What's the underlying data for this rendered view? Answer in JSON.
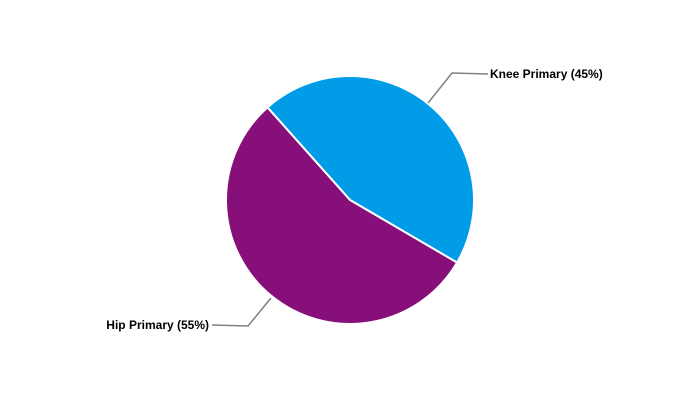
{
  "chart_data": {
    "type": "pie",
    "title": "",
    "slices": [
      {
        "label": "Knee Primary (45%)",
        "category": "Knee Primary",
        "value": 45,
        "color": "#009ce8"
      },
      {
        "label": "Hip Primary (55%)",
        "category": "Hip Primary",
        "value": 55,
        "color": "#860f7a"
      }
    ],
    "legend": "none",
    "labels": "outside-with-leader-lines"
  }
}
